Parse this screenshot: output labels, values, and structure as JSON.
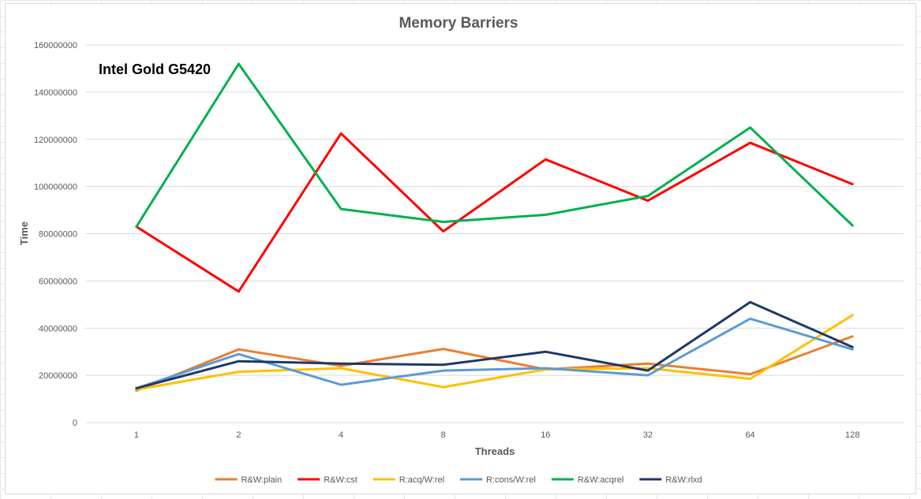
{
  "chart_data": {
    "type": "line",
    "title": "Memory Barriers",
    "annotation": "Intel Gold G5420",
    "xlabel": "Threads",
    "ylabel": "Time",
    "categories": [
      "1",
      "2",
      "4",
      "8",
      "16",
      "32",
      "64",
      "128"
    ],
    "ylim": [
      0,
      160000000
    ],
    "yticks": [
      "0",
      "20000000",
      "40000000",
      "60000000",
      "80000000",
      "100000000",
      "120000000",
      "140000000",
      "160000000"
    ],
    "grid": true,
    "legend_position": "bottom",
    "series": [
      {
        "name": "R&W:plain",
        "color": "#ed7d31",
        "values": [
          13500000,
          31000000,
          24000000,
          31200000,
          22500000,
          25000000,
          20500000,
          36500000
        ]
      },
      {
        "name": "R&W:cst",
        "color": "#ff0000",
        "values": [
          83000000,
          55500000,
          122500000,
          81000000,
          111500000,
          94000000,
          118500000,
          101000000
        ]
      },
      {
        "name": "R:acq/W:rel",
        "color": "#ffc000",
        "values": [
          14000000,
          21500000,
          23000000,
          15000000,
          22500000,
          23000000,
          18500000,
          45500000
        ]
      },
      {
        "name": "R:cons/W:rel",
        "color": "#5b9bd5",
        "values": [
          14500000,
          29000000,
          16000000,
          22000000,
          23000000,
          20000000,
          44000000,
          31000000
        ]
      },
      {
        "name": "R&W:acqrel",
        "color": "#00b050",
        "values": [
          83000000,
          152000000,
          90500000,
          85000000,
          88000000,
          96000000,
          125000000,
          83500000
        ]
      },
      {
        "name": "R&W:rlxd",
        "color": "#203864",
        "values": [
          14500000,
          26000000,
          25000000,
          24500000,
          30000000,
          22000000,
          51000000,
          32000000
        ]
      }
    ]
  }
}
